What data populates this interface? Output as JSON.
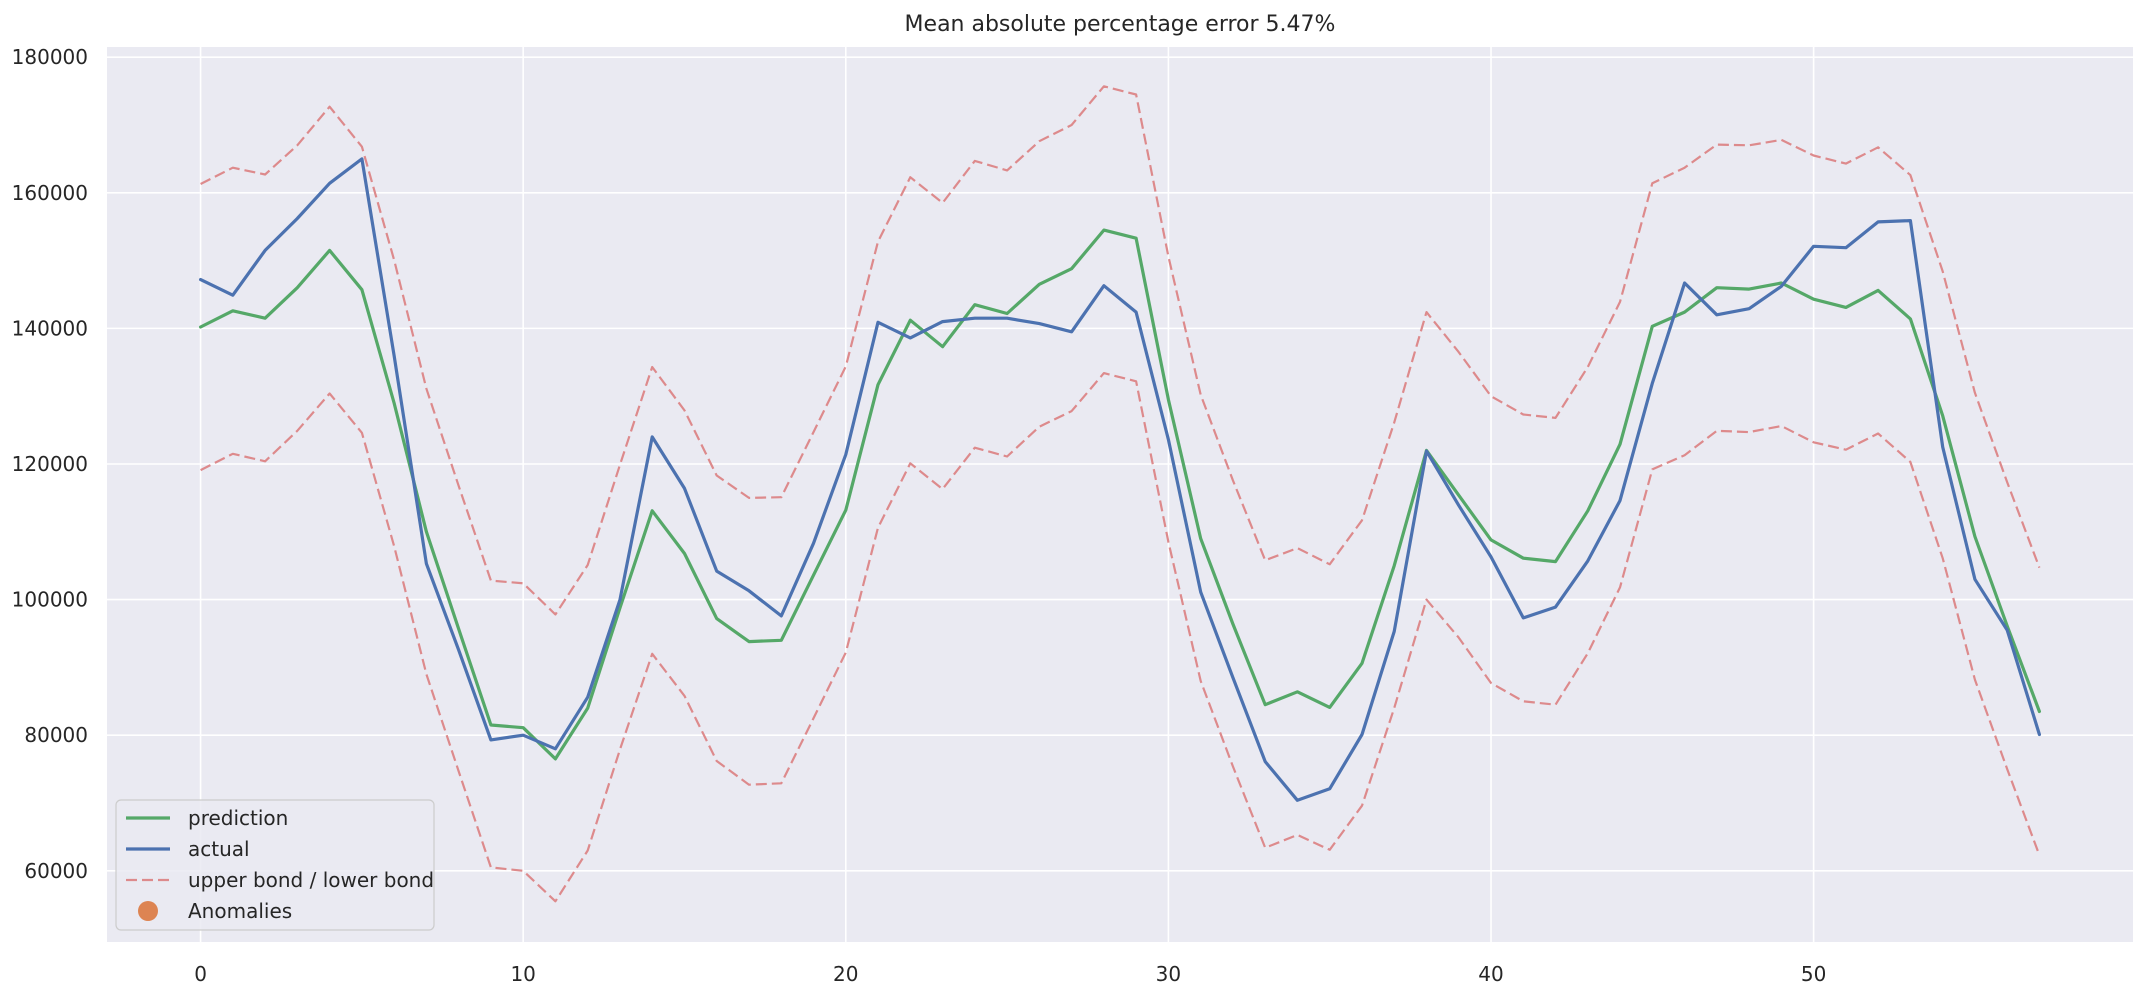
{
  "chart_data": {
    "type": "line",
    "title": "Mean absolute percentage error 5.47%",
    "xlabel": "",
    "ylabel": "",
    "xlim": [
      -2.9,
      59.9
    ],
    "ylim": [
      49500,
      181500
    ],
    "xticks": [
      0,
      10,
      20,
      30,
      40,
      50
    ],
    "yticks": [
      60000,
      80000,
      100000,
      120000,
      140000,
      160000,
      180000
    ],
    "grid": true,
    "legend_position": "lower-left",
    "background": "#eaeaf2",
    "x": [
      0,
      1,
      2,
      3,
      4,
      5,
      6,
      7,
      8,
      9,
      10,
      11,
      12,
      13,
      14,
      15,
      16,
      17,
      18,
      19,
      20,
      21,
      22,
      23,
      24,
      25,
      26,
      27,
      28,
      29,
      30,
      31,
      32,
      33,
      34,
      35,
      36,
      37,
      38,
      39,
      40,
      41,
      42,
      43,
      44,
      45,
      46,
      47,
      48,
      49,
      50,
      51,
      52,
      53,
      54,
      55,
      56,
      57
    ],
    "series": [
      {
        "name": "prediction",
        "color": "#55a868",
        "style": "solid",
        "values": [
          140200,
          142600,
          141500,
          146000,
          151500,
          145700,
          129000,
          110000,
          95700,
          81500,
          81100,
          76500,
          84000,
          98800,
          113100,
          106800,
          97200,
          93800,
          94000,
          103600,
          113200,
          131700,
          141200,
          137300,
          143500,
          142200,
          146500,
          148800,
          154500,
          153300,
          129500,
          109000,
          96400,
          84500,
          86400,
          84100,
          90600,
          105000,
          122000,
          115400,
          108800,
          106100,
          105600,
          113100,
          122900,
          140300,
          142400,
          146000,
          145800,
          146700,
          144300,
          143100,
          145600,
          141400,
          127100,
          109300,
          96100,
          83500
        ]
      },
      {
        "name": "actual",
        "color": "#4c72b0",
        "style": "solid",
        "values": [
          147200,
          144900,
          151500,
          156200,
          161400,
          165000,
          136000,
          105300,
          92600,
          79300,
          80000,
          78000,
          85600,
          100000,
          124000,
          116400,
          104200,
          101300,
          97600,
          108300,
          121400,
          140900,
          138600,
          141000,
          141500,
          141500,
          140700,
          139500,
          146300,
          142400,
          123600,
          101100,
          88500,
          76100,
          70400,
          72100,
          80100,
          95300,
          121900,
          113900,
          106300,
          97300,
          98900,
          105700,
          114600,
          131900,
          146700,
          142000,
          142900,
          146200,
          152100,
          151900,
          155700,
          155900,
          122500,
          103000,
          95500,
          80100
        ]
      },
      {
        "name": "upper bond / lower bond",
        "color": "#dd8a8c",
        "style": "dashed",
        "values": [
          161300,
          163700,
          162700,
          167000,
          172700,
          166800,
          150100,
          131100,
          116800,
          102800,
          102400,
          97800,
          105100,
          119900,
          134300,
          127900,
          118300,
          115000,
          115100,
          124700,
          134400,
          152800,
          162300,
          158500,
          164700,
          163300,
          167600,
          170000,
          175700,
          174500,
          150600,
          130200,
          117600,
          105800,
          107600,
          105200,
          111700,
          126100,
          142400,
          136500,
          130000,
          127300,
          126800,
          134300,
          143900,
          161400,
          163700,
          167100,
          167000,
          167800,
          165500,
          164300,
          166700,
          162600,
          148400,
          130500,
          117300,
          104700
        ]
      },
      {
        "name": "upper bond / lower bond",
        "color": "#dd8a8c",
        "style": "dashed",
        "values": [
          119100,
          121500,
          120400,
          124900,
          130400,
          124600,
          107900,
          89000,
          74700,
          60500,
          60000,
          55500,
          63000,
          77900,
          92000,
          85800,
          76200,
          72700,
          72900,
          82500,
          92200,
          110600,
          120100,
          116300,
          122400,
          121100,
          125500,
          127800,
          133400,
          132200,
          108500,
          88000,
          75400,
          63400,
          65300,
          63100,
          69600,
          84000,
          100000,
          94400,
          87700,
          85000,
          84500,
          92100,
          101800,
          119200,
          121300,
          124900,
          124700,
          125600,
          123200,
          122100,
          124500,
          120300,
          106100,
          88200,
          75000,
          62300
        ]
      }
    ],
    "legend": {
      "items": [
        {
          "label": "prediction",
          "marker": "line",
          "color": "#55a868"
        },
        {
          "label": "actual",
          "marker": "line",
          "color": "#4c72b0"
        },
        {
          "label": "upper bond / lower bond",
          "marker": "dashed",
          "color": "#dd8a8c"
        },
        {
          "label": "Anomalies",
          "marker": "circle",
          "color": "#dd8452"
        }
      ]
    }
  }
}
